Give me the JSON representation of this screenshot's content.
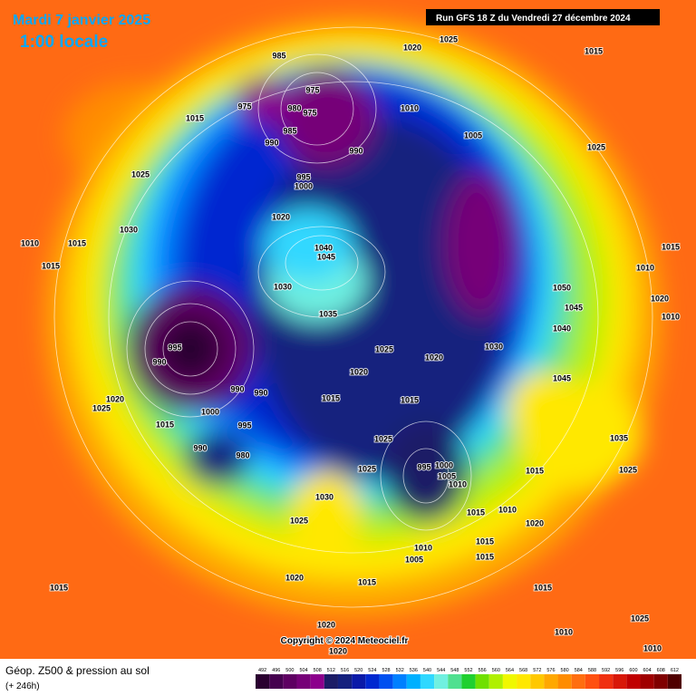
{
  "header": {
    "title": "Mardi 7 janvier 2025",
    "subtitle": "1:00 locale",
    "run": "Run GFS 18 Z du Vendredi 27 décembre 2024"
  },
  "copyright": "Copyright © 2024 Meteociel.fr",
  "footer": {
    "title": "Géop. Z500 & pression au sol",
    "subtitle": "(+ 246h)"
  },
  "colorbar": {
    "levels": [
      492,
      496,
      500,
      504,
      508,
      512,
      516,
      520,
      524,
      528,
      532,
      536,
      540,
      544,
      548,
      552,
      556,
      560,
      564,
      568,
      572,
      576,
      580,
      584,
      588,
      592,
      596,
      600,
      604,
      608,
      612
    ],
    "colors": [
      "#2a0030",
      "#45004f",
      "#5e0062",
      "#760078",
      "#8c008c",
      "#1c1c66",
      "#14207e",
      "#0a1aa8",
      "#0028d0",
      "#0050f0",
      "#0080ff",
      "#00b0ff",
      "#30d8ff",
      "#70f0e0",
      "#50e090",
      "#20d030",
      "#70e000",
      "#b0f000",
      "#f0f800",
      "#ffe800",
      "#ffc800",
      "#ffa800",
      "#ff8c00",
      "#ff6e10",
      "#ff5010",
      "#f03010",
      "#d81808",
      "#c00000",
      "#a00000",
      "#800000",
      "#500000"
    ]
  },
  "isobar_labels": [
    985,
    975,
    975,
    980,
    975,
    985,
    990,
    990,
    1010,
    1020,
    1025,
    1015,
    1005,
    1025,
    995,
    1000,
    1020,
    1040,
    1045,
    1030,
    1035,
    995,
    990,
    990,
    990,
    1000,
    995,
    980,
    990,
    1025,
    1020,
    1020,
    1030,
    1015,
    1015,
    1025,
    1025,
    995,
    1000,
    1005,
    1010,
    1015,
    1010,
    1020,
    1015,
    1025,
    1035,
    1045,
    1050,
    1045,
    1040,
    1015,
    1010,
    1020,
    1010,
    1015,
    1025,
    1030,
    1010,
    1015,
    1015,
    1020,
    1025,
    1015,
    1030,
    1025,
    1020,
    1015,
    1010,
    1005,
    1015,
    1015,
    1015,
    1015,
    1020,
    1020,
    1010,
    1025,
    1010
  ]
}
